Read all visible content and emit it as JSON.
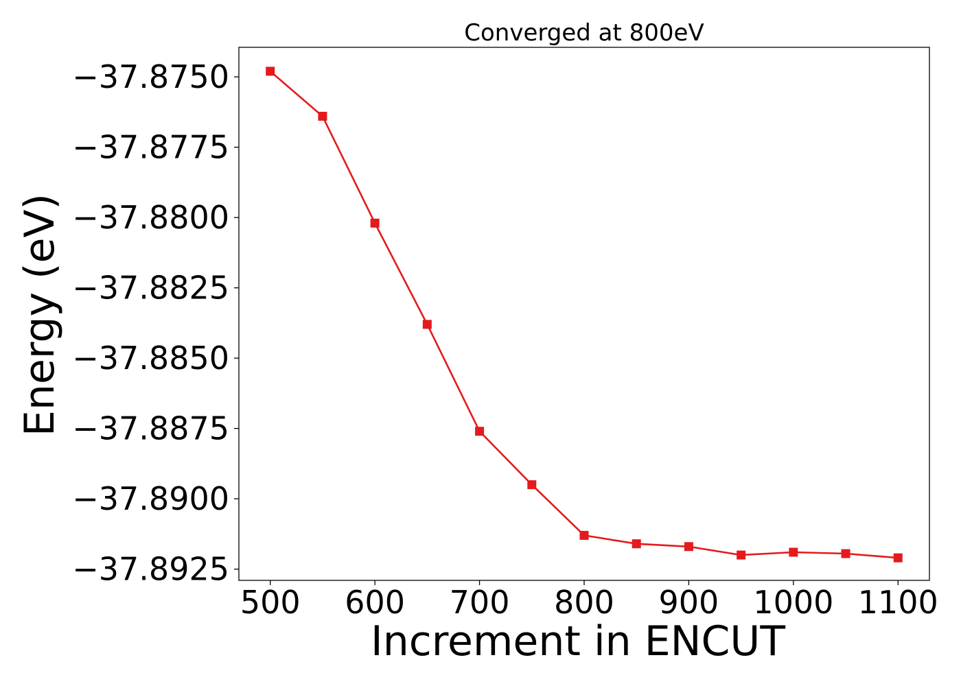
{
  "chart_data": {
    "type": "line",
    "title": "Converged at 800eV",
    "xlabel": "Increment in ENCUT",
    "ylabel": "Energy (eV)",
    "xlim": [
      470,
      1130
    ],
    "ylim": [
      -37.8929,
      -37.87395
    ],
    "xticks": [
      500,
      600,
      700,
      800,
      900,
      1000,
      1100
    ],
    "xtick_labels": [
      "500",
      "600",
      "700",
      "800",
      "900",
      "1000",
      "1100"
    ],
    "yticks": [
      -37.875,
      -37.8775,
      -37.88,
      -37.8825,
      -37.885,
      -37.8875,
      -37.89,
      -37.8925
    ],
    "ytick_labels": [
      "−37.8750",
      "−37.8775",
      "−37.8800",
      "−37.8825",
      "−37.8850",
      "−37.8875",
      "−37.8900",
      "−37.8925"
    ],
    "grid": false,
    "series": [
      {
        "color": "#e41a1c",
        "marker": "square",
        "x": [
          500,
          550,
          600,
          650,
          700,
          750,
          800,
          850,
          900,
          950,
          1000,
          1050,
          1100
        ],
        "y": [
          -37.8748,
          -37.8764,
          -37.8802,
          -37.8838,
          -37.8876,
          -37.8895,
          -37.8913,
          -37.8916,
          -37.8917,
          -37.892,
          -37.8919,
          -37.89195,
          -37.8921
        ]
      }
    ]
  }
}
